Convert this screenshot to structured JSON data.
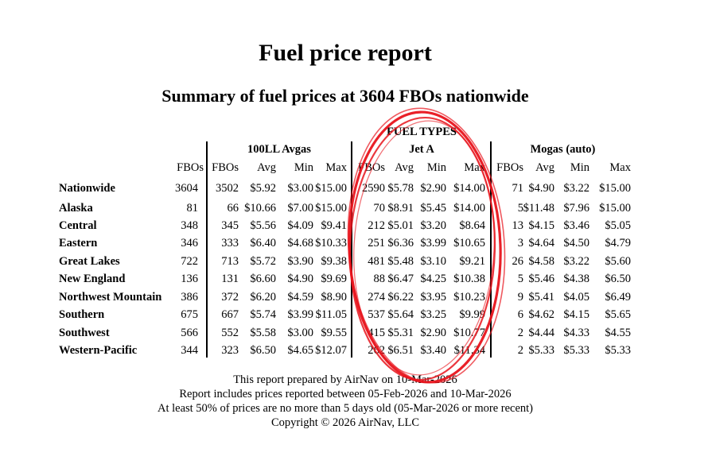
{
  "title": "Fuel price report",
  "subtitle": "Summary of fuel prices at 3604 FBOs nationwide",
  "fuel_types_label": "FUEL TYPES",
  "groups": [
    "100LL Avgas",
    "Jet A",
    "Mogas (auto)"
  ],
  "fbos_header": "FBOs",
  "sub_headers": [
    "FBOs",
    "Avg",
    "Min",
    "Max"
  ],
  "rows": [
    {
      "region": "Nationwide",
      "fbos": "3604",
      "avgas": [
        "3502",
        "$5.92",
        "$3.00",
        "$15.00"
      ],
      "jeta": [
        "2590",
        "$5.78",
        "$2.90",
        "$14.00"
      ],
      "mogas": [
        "71",
        "$4.90",
        "$3.22",
        "$15.00"
      ]
    },
    {
      "region": "Alaska",
      "fbos": "81",
      "avgas": [
        "66",
        "$10.66",
        "$7.00",
        "$15.00"
      ],
      "jeta": [
        "70",
        "$8.91",
        "$5.45",
        "$14.00"
      ],
      "mogas": [
        "5",
        "$11.48",
        "$7.96",
        "$15.00"
      ]
    },
    {
      "region": "Central",
      "fbos": "348",
      "avgas": [
        "345",
        "$5.56",
        "$4.09",
        "$9.41"
      ],
      "jeta": [
        "212",
        "$5.01",
        "$3.20",
        "$8.64"
      ],
      "mogas": [
        "13",
        "$4.15",
        "$3.46",
        "$5.05"
      ]
    },
    {
      "region": "Eastern",
      "fbos": "346",
      "avgas": [
        "333",
        "$6.40",
        "$4.68",
        "$10.33"
      ],
      "jeta": [
        "251",
        "$6.36",
        "$3.99",
        "$10.65"
      ],
      "mogas": [
        "3",
        "$4.64",
        "$4.50",
        "$4.79"
      ]
    },
    {
      "region": "Great Lakes",
      "fbos": "722",
      "avgas": [
        "713",
        "$5.72",
        "$3.90",
        "$9.38"
      ],
      "jeta": [
        "481",
        "$5.48",
        "$3.10",
        "$9.21"
      ],
      "mogas": [
        "26",
        "$4.58",
        "$3.22",
        "$5.60"
      ]
    },
    {
      "region": "New England",
      "fbos": "136",
      "avgas": [
        "131",
        "$6.60",
        "$4.90",
        "$9.69"
      ],
      "jeta": [
        "88",
        "$6.47",
        "$4.25",
        "$10.38"
      ],
      "mogas": [
        "5",
        "$5.46",
        "$4.38",
        "$6.50"
      ]
    },
    {
      "region": "Northwest Mountain",
      "fbos": "386",
      "avgas": [
        "372",
        "$6.20",
        "$4.59",
        "$8.90"
      ],
      "jeta": [
        "274",
        "$6.22",
        "$3.95",
        "$10.23"
      ],
      "mogas": [
        "9",
        "$5.41",
        "$4.05",
        "$6.49"
      ]
    },
    {
      "region": "Southern",
      "fbos": "675",
      "avgas": [
        "667",
        "$5.74",
        "$3.99",
        "$11.05"
      ],
      "jeta": [
        "537",
        "$5.64",
        "$3.25",
        "$9.99"
      ],
      "mogas": [
        "6",
        "$4.62",
        "$4.15",
        "$5.65"
      ]
    },
    {
      "region": "Southwest",
      "fbos": "566",
      "avgas": [
        "552",
        "$5.58",
        "$3.00",
        "$9.55"
      ],
      "jeta": [
        "415",
        "$5.31",
        "$2.90",
        "$10.77"
      ],
      "mogas": [
        "2",
        "$4.44",
        "$4.33",
        "$4.55"
      ]
    },
    {
      "region": "Western-Pacific",
      "fbos": "344",
      "avgas": [
        "323",
        "$6.50",
        "$4.65",
        "$12.07"
      ],
      "jeta": [
        "262",
        "$6.51",
        "$3.40",
        "$11.34"
      ],
      "mogas": [
        "2",
        "$5.33",
        "$5.33",
        "$5.33"
      ]
    }
  ],
  "footer": [
    "This report prepared by AirNav on 10-Mar-2026",
    "Report includes prices reported between 05-Feb-2026 and 10-Mar-2026",
    "At least 50% of prices are no more than 5 days old (05-Mar-2026 or more recent)",
    "Copyright © 2026 AirNav, LLC"
  ],
  "annotation_color": "#e8141c"
}
